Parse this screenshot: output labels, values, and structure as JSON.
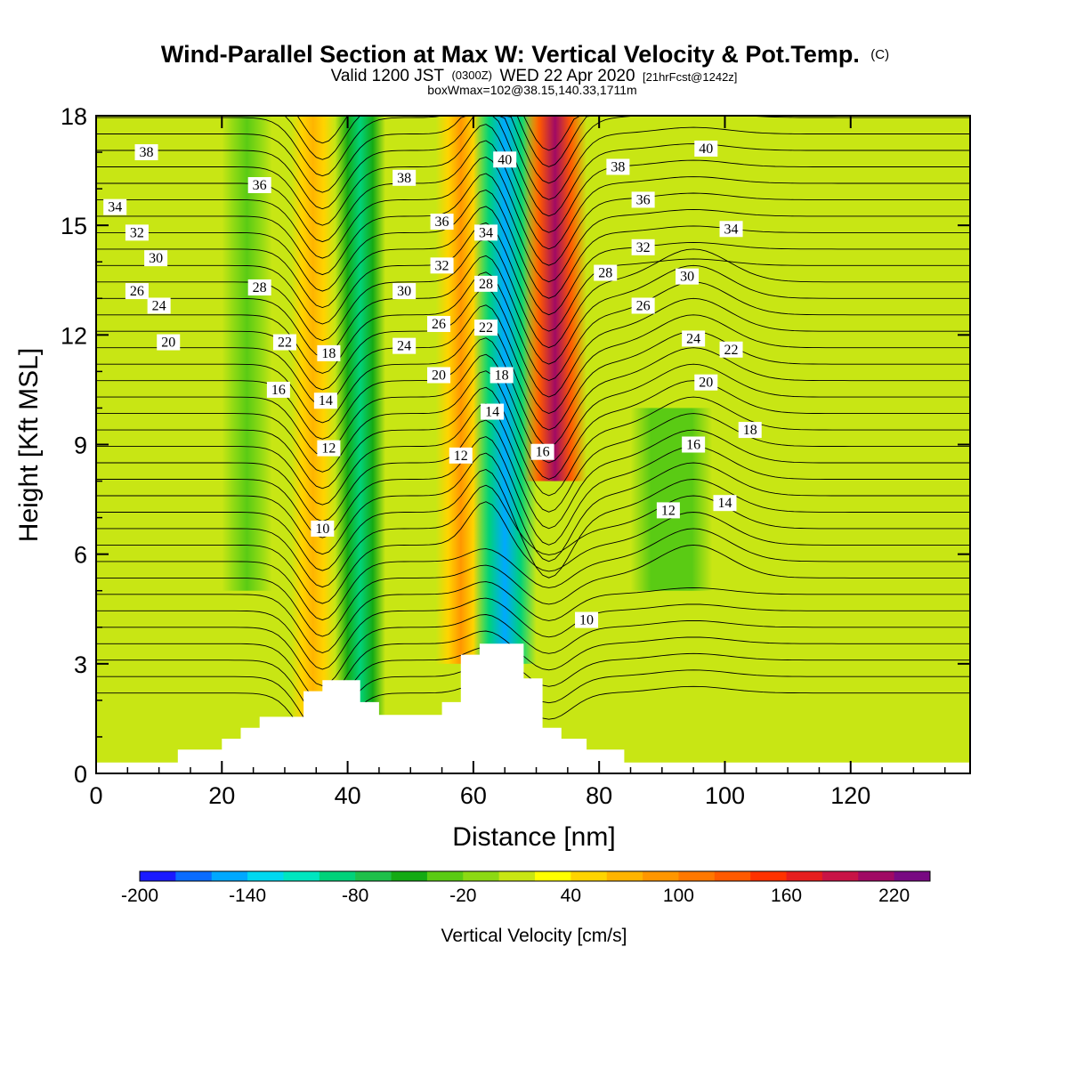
{
  "title": {
    "main": "Wind-Parallel Section at Max W: Vertical Velocity & Pot.Temp.",
    "copyright": "(C)",
    "valid_prefix": "Valid 1200 JST",
    "valid_utc": "(0300Z)",
    "valid_suffix": "WED 22 Apr 2020",
    "forecast_info": "[21hrFcst@1242z]",
    "box_info": "boxWmax=102@38.15,140.33,1711m"
  },
  "chart_data": {
    "type": "heatmap",
    "xlabel": "Distance [nm]",
    "ylabel": "Height [Kft MSL]",
    "xlim": [
      0,
      139
    ],
    "ylim": [
      0,
      18
    ],
    "x_ticks": [
      0,
      20,
      40,
      60,
      80,
      100,
      120
    ],
    "y_ticks": [
      0,
      3,
      6,
      9,
      12,
      15,
      18
    ],
    "fill_variable": "Vertical Velocity",
    "contour_variable": "Potential Temperature",
    "colorbar": {
      "title": "Vertical Velocity [cm/s]",
      "min": -200,
      "max": 240,
      "step": 20,
      "tick_labels": [
        "-200",
        "-140",
        "-80",
        "-20",
        "40",
        "100",
        "160",
        "220"
      ],
      "tick_values": [
        -200,
        -140,
        -80,
        -20,
        40,
        100,
        160,
        220
      ],
      "colors": [
        "#1a1aff",
        "#0a6cff",
        "#00a8ff",
        "#00d8f0",
        "#00e6c0",
        "#00d27a",
        "#1ec04a",
        "#14aa14",
        "#5acb14",
        "#8cd914",
        "#c8e614",
        "#ffff00",
        "#ffd400",
        "#ffb400",
        "#ff9600",
        "#ff7800",
        "#ff5a00",
        "#ff3200",
        "#e61e1e",
        "#c81446",
        "#a00a64",
        "#780a82"
      ]
    },
    "velocity_bands": [
      {
        "x": [
          20,
          28
        ],
        "y": [
          5,
          18
        ],
        "value": -30,
        "note": "weak downdraft"
      },
      {
        "x": [
          31,
          38
        ],
        "y": [
          1,
          18
        ],
        "value": 70,
        "note": "updraft"
      },
      {
        "x": [
          38,
          46
        ],
        "y": [
          1,
          18
        ],
        "value": -90,
        "note": "downdraft"
      },
      {
        "x": [
          54,
          62
        ],
        "y": [
          3,
          18
        ],
        "value": 80,
        "note": "updraft"
      },
      {
        "x": [
          60,
          70
        ],
        "y": [
          3,
          18
        ],
        "value": -160,
        "note": "strong downdraft"
      },
      {
        "x": [
          68,
          78
        ],
        "y": [
          8,
          18
        ],
        "value": 200,
        "note": "strong updraft"
      },
      {
        "x": [
          85,
          98
        ],
        "y": [
          5,
          10
        ],
        "value": -40,
        "note": "downdraft"
      }
    ],
    "contour_labels": [
      "10",
      "12",
      "14",
      "16",
      "18",
      "20",
      "22",
      "24",
      "26",
      "28",
      "30",
      "32",
      "34",
      "36",
      "38",
      "40"
    ],
    "contour_label_points": [
      {
        "label": "38",
        "x": 8,
        "y": 17
      },
      {
        "label": "34",
        "x": 3,
        "y": 15.5
      },
      {
        "label": "36",
        "x": 26,
        "y": 16.1
      },
      {
        "label": "32",
        "x": 6.5,
        "y": 14.8
      },
      {
        "label": "30",
        "x": 9.5,
        "y": 14.1
      },
      {
        "label": "28",
        "x": 26,
        "y": 13.3
      },
      {
        "label": "26",
        "x": 6.5,
        "y": 13.2
      },
      {
        "label": "24",
        "x": 10,
        "y": 12.8
      },
      {
        "label": "20",
        "x": 11.5,
        "y": 11.8
      },
      {
        "label": "22",
        "x": 30,
        "y": 11.8
      },
      {
        "label": "18",
        "x": 37,
        "y": 11.5
      },
      {
        "label": "16",
        "x": 29,
        "y": 10.5
      },
      {
        "label": "14",
        "x": 36.5,
        "y": 10.2
      },
      {
        "label": "12",
        "x": 37,
        "y": 8.9
      },
      {
        "label": "10",
        "x": 36,
        "y": 6.7
      },
      {
        "label": "38",
        "x": 49,
        "y": 16.3
      },
      {
        "label": "36",
        "x": 55,
        "y": 15.1
      },
      {
        "label": "32",
        "x": 55,
        "y": 13.9
      },
      {
        "label": "30",
        "x": 49,
        "y": 13.2
      },
      {
        "label": "26",
        "x": 54.5,
        "y": 12.3
      },
      {
        "label": "24",
        "x": 49,
        "y": 11.7
      },
      {
        "label": "20",
        "x": 54.5,
        "y": 10.9
      },
      {
        "label": "12",
        "x": 58,
        "y": 8.7
      },
      {
        "label": "40",
        "x": 65,
        "y": 16.8
      },
      {
        "label": "34",
        "x": 62,
        "y": 14.8
      },
      {
        "label": "28",
        "x": 62,
        "y": 13.4
      },
      {
        "label": "22",
        "x": 62,
        "y": 12.2
      },
      {
        "label": "18",
        "x": 64.5,
        "y": 10.9
      },
      {
        "label": "14",
        "x": 63,
        "y": 9.9
      },
      {
        "label": "16",
        "x": 71,
        "y": 8.8
      },
      {
        "label": "10",
        "x": 78,
        "y": 4.2
      },
      {
        "label": "38",
        "x": 83,
        "y": 16.6
      },
      {
        "label": "36",
        "x": 87,
        "y": 15.7
      },
      {
        "label": "32",
        "x": 87,
        "y": 14.4
      },
      {
        "label": "28",
        "x": 81,
        "y": 13.7
      },
      {
        "label": "26",
        "x": 87,
        "y": 12.8
      },
      {
        "label": "40",
        "x": 97,
        "y": 17.1
      },
      {
        "label": "34",
        "x": 101,
        "y": 14.9
      },
      {
        "label": "30",
        "x": 94,
        "y": 13.6
      },
      {
        "label": "24",
        "x": 95,
        "y": 11.9
      },
      {
        "label": "22",
        "x": 101,
        "y": 11.6
      },
      {
        "label": "20",
        "x": 97,
        "y": 10.7
      },
      {
        "label": "18",
        "x": 104,
        "y": 9.4
      },
      {
        "label": "16",
        "x": 95,
        "y": 9.0
      },
      {
        "label": "12",
        "x": 91,
        "y": 7.2
      },
      {
        "label": "14",
        "x": 100,
        "y": 7.4
      }
    ],
    "terrain_profile": [
      [
        0,
        0.3
      ],
      [
        13,
        0.3
      ],
      [
        13,
        0.65
      ],
      [
        20,
        0.65
      ],
      [
        20,
        0.95
      ],
      [
        23,
        0.95
      ],
      [
        23,
        1.25
      ],
      [
        26,
        1.25
      ],
      [
        26,
        1.55
      ],
      [
        33,
        1.55
      ],
      [
        33,
        2.25
      ],
      [
        36,
        2.25
      ],
      [
        36,
        2.55
      ],
      [
        42,
        2.55
      ],
      [
        42,
        1.95
      ],
      [
        45,
        1.95
      ],
      [
        45,
        1.6
      ],
      [
        55,
        1.6
      ],
      [
        55,
        1.95
      ],
      [
        58,
        1.95
      ],
      [
        58,
        3.25
      ],
      [
        61,
        3.25
      ],
      [
        61,
        3.55
      ],
      [
        68,
        3.55
      ],
      [
        68,
        2.6
      ],
      [
        71,
        2.6
      ],
      [
        71,
        1.25
      ],
      [
        74,
        1.25
      ],
      [
        74,
        0.95
      ],
      [
        78,
        0.95
      ],
      [
        78,
        0.65
      ],
      [
        84,
        0.65
      ],
      [
        84,
        0.3
      ],
      [
        139,
        0.3
      ]
    ]
  }
}
